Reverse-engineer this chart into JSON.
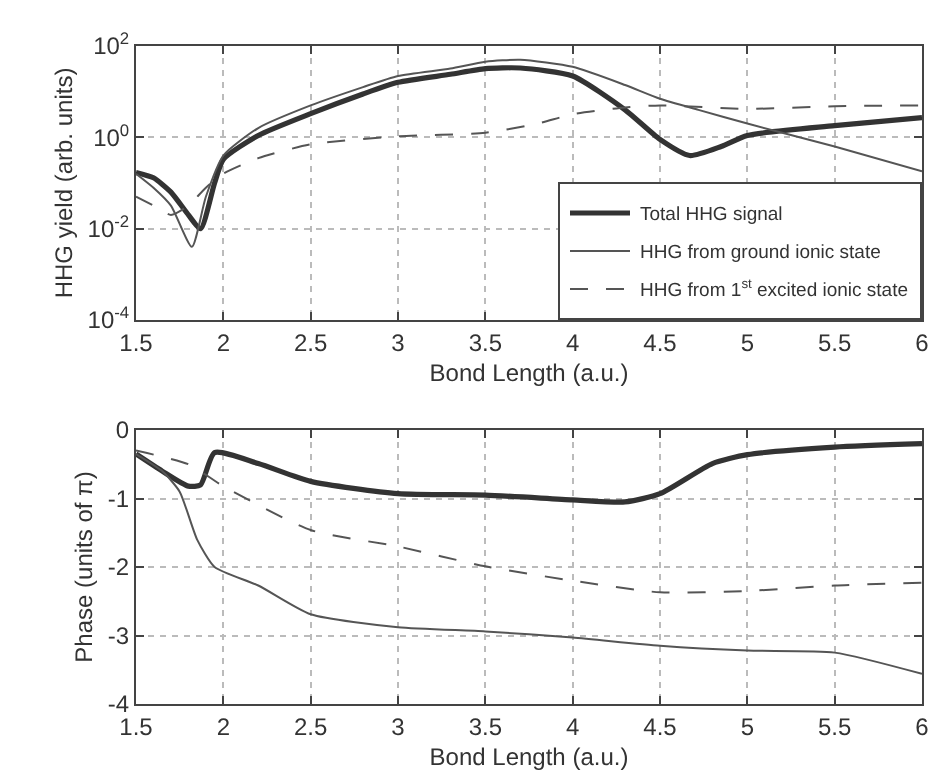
{
  "chart_data": [
    {
      "type": "line",
      "xlabel": "Bond Length (a.u.)",
      "ylabel": "HHG yield (arb. units)",
      "log": "y",
      "grid": true,
      "legend": "bottom right",
      "marker": "none",
      "xlim": [
        1.5,
        6
      ],
      "xticks": [
        1.5,
        2,
        2.5,
        3,
        3.5,
        4,
        4.5,
        5,
        5.5,
        6
      ],
      "ylim": [
        0.0001,
        100
      ],
      "yticks": [
        {
          "value": 0.0001,
          "label": "10$^{-4}$"
        },
        {
          "value": 0.01,
          "label": "10$^{-2}$"
        },
        {
          "value": 1,
          "label": "10$^{0}$"
        },
        {
          "value": 100,
          "label": "10$^{2}$"
        }
      ],
      "series": [
        {
          "name": "Total HHG signal",
          "color": "#333333",
          "line_style": "solid",
          "x": [
            1.5,
            1.6,
            1.7,
            1.8,
            1.87,
            1.95,
            2.0,
            2.2,
            2.5,
            2.8,
            3.0,
            3.3,
            3.5,
            3.7,
            4.0,
            4.3,
            4.5,
            4.67,
            4.85,
            5.0,
            5.5,
            6.0
          ],
          "values": [
            0.17,
            0.13,
            0.063,
            0.02,
            0.01,
            0.1,
            0.33,
            1.1,
            3.3,
            8.9,
            16,
            24,
            32,
            33,
            22,
            4,
            0.9,
            0.4,
            0.63,
            1.1,
            1.8,
            2.7
          ]
        },
        {
          "name": "HHG from ground ionic state",
          "color": "#555555",
          "line_style": "solid",
          "x": [
            1.5,
            1.6,
            1.7,
            1.82,
            1.9,
            2.0,
            2.2,
            2.5,
            2.8,
            3.0,
            3.3,
            3.5,
            3.7,
            4.0,
            4.3,
            4.5,
            4.72,
            5.0,
            5.5,
            6.0
          ],
          "values": [
            0.16,
            0.079,
            0.032,
            0.004,
            0.05,
            0.4,
            1.6,
            5,
            12.6,
            22,
            32,
            45,
            50,
            35,
            14,
            7,
            4,
            2,
            0.63,
            0.18
          ]
        },
        {
          "name": "HHG from 1$^{st}$ excited ionic state",
          "color": "#555555",
          "line_style": "dashed",
          "x": [
            1.5,
            1.6,
            1.7,
            1.8,
            1.9,
            2.0,
            2.2,
            2.5,
            3.0,
            3.5,
            3.8,
            4.0,
            4.3,
            4.5,
            5.0,
            5.5,
            6.0
          ],
          "values": [
            0.05,
            0.032,
            0.02,
            0.032,
            0.079,
            0.16,
            0.35,
            0.7,
            1.05,
            1.26,
            2,
            3.2,
            4.5,
            5,
            4.2,
            4.8,
            5
          ]
        }
      ]
    },
    {
      "type": "line",
      "xlabel": "Bond Length (a.u.)",
      "ylabel": "Phase (units of π)",
      "grid": true,
      "marker": "none",
      "xlim": [
        1.5,
        6
      ],
      "xticks": [
        1.5,
        2,
        2.5,
        3,
        3.5,
        4,
        4.5,
        5,
        5.5,
        6
      ],
      "ylim": [
        -4,
        0
      ],
      "yticks": [
        -4,
        -3,
        -2,
        -1,
        0
      ],
      "series": [
        {
          "color": "#333333",
          "line_style": "solid",
          "x": [
            1.5,
            1.65,
            1.8,
            1.87,
            1.95,
            2.2,
            2.5,
            3.0,
            3.5,
            4.0,
            4.3,
            4.5,
            4.8,
            5.0,
            5.5,
            6.0
          ],
          "values": [
            -0.35,
            -0.6,
            -0.82,
            -0.8,
            -0.33,
            -0.49,
            -0.75,
            -0.93,
            -0.95,
            -1.02,
            -1.05,
            -0.93,
            -0.49,
            -0.36,
            -0.25,
            -0.2
          ]
        },
        {
          "color": "#555555",
          "line_style": "solid",
          "x": [
            1.5,
            1.65,
            1.75,
            1.85,
            1.95,
            2.2,
            2.5,
            3.0,
            3.5,
            4.0,
            4.5,
            5.0,
            5.5,
            6.0
          ],
          "values": [
            -0.35,
            -0.6,
            -0.9,
            -1.6,
            -2.0,
            -2.27,
            -2.69,
            -2.88,
            -2.94,
            -3.03,
            -3.15,
            -3.22,
            -3.25,
            -3.56
          ]
        },
        {
          "color": "#555555",
          "line_style": "dashed",
          "x": [
            1.5,
            1.8,
            2.0,
            2.5,
            3.0,
            3.5,
            4.0,
            4.5,
            5.0,
            5.5,
            6.0
          ],
          "values": [
            -0.3,
            -0.5,
            -0.82,
            -1.46,
            -1.7,
            -1.99,
            -2.2,
            -2.37,
            -2.35,
            -2.27,
            -2.23
          ]
        }
      ]
    }
  ]
}
